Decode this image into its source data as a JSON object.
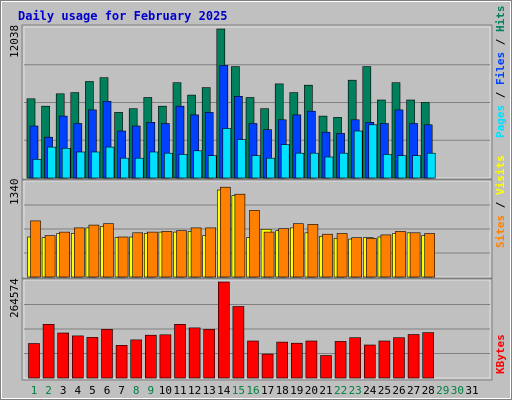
{
  "title": "Daily usage for February 2025",
  "colors": {
    "background": "#c0c0c0",
    "panel": "#c0c0c0",
    "title": "#0000cc",
    "hits": "#00805c",
    "files": "#0040ff",
    "pages": "#00e0ff",
    "visits": "#ffff00",
    "sites": "#ff8000",
    "kbytes": "#ff0000",
    "grid": "#808080",
    "day_weekday": "#000000",
    "day_weekend": "#008040"
  },
  "chart_data": [
    {
      "type": "bar",
      "title": "Daily usage for February 2025",
      "categories": [
        "1",
        "2",
        "3",
        "4",
        "5",
        "6",
        "7",
        "8",
        "9",
        "10",
        "11",
        "12",
        "13",
        "14",
        "15",
        "16",
        "17",
        "18",
        "19",
        "20",
        "21",
        "22",
        "23",
        "24",
        "25",
        "26",
        "27",
        "28",
        "29",
        "30",
        "31"
      ],
      "ymax_label": "12038",
      "ylim": [
        0,
        12038
      ],
      "grid": true,
      "legend": "right",
      "series": [
        {
          "name": "Hits",
          "color": "#00805c",
          "values": [
            6400,
            5800,
            6800,
            6900,
            7800,
            8100,
            5300,
            5600,
            6500,
            5800,
            7700,
            6700,
            7300,
            12038,
            9000,
            6500,
            5600,
            7600,
            6900,
            7500,
            5000,
            4900,
            7900,
            9000,
            6300,
            7700,
            6300,
            6100,
            0,
            0,
            0
          ]
        },
        {
          "name": "Files",
          "color": "#0040ff",
          "values": [
            4200,
            3300,
            5000,
            4400,
            5500,
            6200,
            3800,
            4200,
            4500,
            4400,
            5800,
            5100,
            5300,
            9100,
            6600,
            4400,
            3900,
            4700,
            5100,
            5400,
            3700,
            3600,
            4700,
            4500,
            4400,
            5500,
            4400,
            4300,
            0,
            0,
            0
          ]
        },
        {
          "name": "Pages",
          "color": "#00e0ff",
          "values": [
            1500,
            2500,
            2400,
            2100,
            2100,
            2500,
            1600,
            1600,
            2100,
            2000,
            1900,
            2200,
            1800,
            4000,
            3100,
            1800,
            1600,
            2700,
            2000,
            2000,
            1700,
            2000,
            3800,
            4300,
            1900,
            1800,
            1800,
            2000,
            0,
            0,
            0
          ]
        }
      ]
    },
    {
      "type": "bar",
      "categories": [
        "1",
        "2",
        "3",
        "4",
        "5",
        "6",
        "7",
        "8",
        "9",
        "10",
        "11",
        "12",
        "13",
        "14",
        "15",
        "16",
        "17",
        "18",
        "19",
        "20",
        "21",
        "22",
        "23",
        "24",
        "25",
        "26",
        "27",
        "28",
        "29",
        "30",
        "31"
      ],
      "ymax_label": "1340",
      "ylim": [
        0,
        1340
      ],
      "grid": true,
      "legend": "right",
      "series": [
        {
          "name": "Visits",
          "color": "#ffff00",
          "values": [
            570,
            560,
            620,
            620,
            700,
            720,
            560,
            570,
            620,
            640,
            640,
            650,
            590,
            1240,
            1160,
            560,
            680,
            660,
            700,
            630,
            580,
            550,
            540,
            560,
            570,
            620,
            630,
            590,
            0,
            0,
            0
          ]
        },
        {
          "name": "Sites",
          "color": "#ff8000",
          "values": [
            800,
            590,
            640,
            700,
            740,
            760,
            570,
            630,
            640,
            650,
            660,
            700,
            700,
            1280,
            1180,
            950,
            640,
            690,
            760,
            750,
            610,
            620,
            560,
            550,
            600,
            650,
            630,
            620,
            0,
            0,
            0
          ]
        }
      ]
    },
    {
      "type": "bar",
      "categories": [
        "1",
        "2",
        "3",
        "4",
        "5",
        "6",
        "7",
        "8",
        "9",
        "10",
        "11",
        "12",
        "13",
        "14",
        "15",
        "16",
        "17",
        "18",
        "19",
        "20",
        "21",
        "22",
        "23",
        "24",
        "25",
        "26",
        "27",
        "28",
        "29",
        "30",
        "31"
      ],
      "ymax_label": "264574",
      "ylim": [
        0,
        264574
      ],
      "grid": true,
      "legend": "right",
      "series": [
        {
          "name": "KBytes",
          "color": "#ff0000",
          "values": [
            95000,
            148000,
            124000,
            116000,
            112000,
            134000,
            90000,
            105000,
            118000,
            119000,
            148000,
            138000,
            134000,
            264574,
            197000,
            102000,
            66000,
            99000,
            96000,
            102000,
            62000,
            101000,
            111000,
            91000,
            102000,
            111000,
            120000,
            125000,
            0,
            0,
            0
          ]
        }
      ]
    }
  ],
  "legends": {
    "panel1": [
      "Pages",
      "/",
      "Files",
      "/",
      "Hits"
    ],
    "panel2": [
      "Sites",
      "/",
      "Visits"
    ],
    "panel3": [
      "KBytes"
    ]
  },
  "weekend_days": [
    "1",
    "2",
    "8",
    "9",
    "15",
    "16",
    "22",
    "23",
    "29",
    "30"
  ]
}
